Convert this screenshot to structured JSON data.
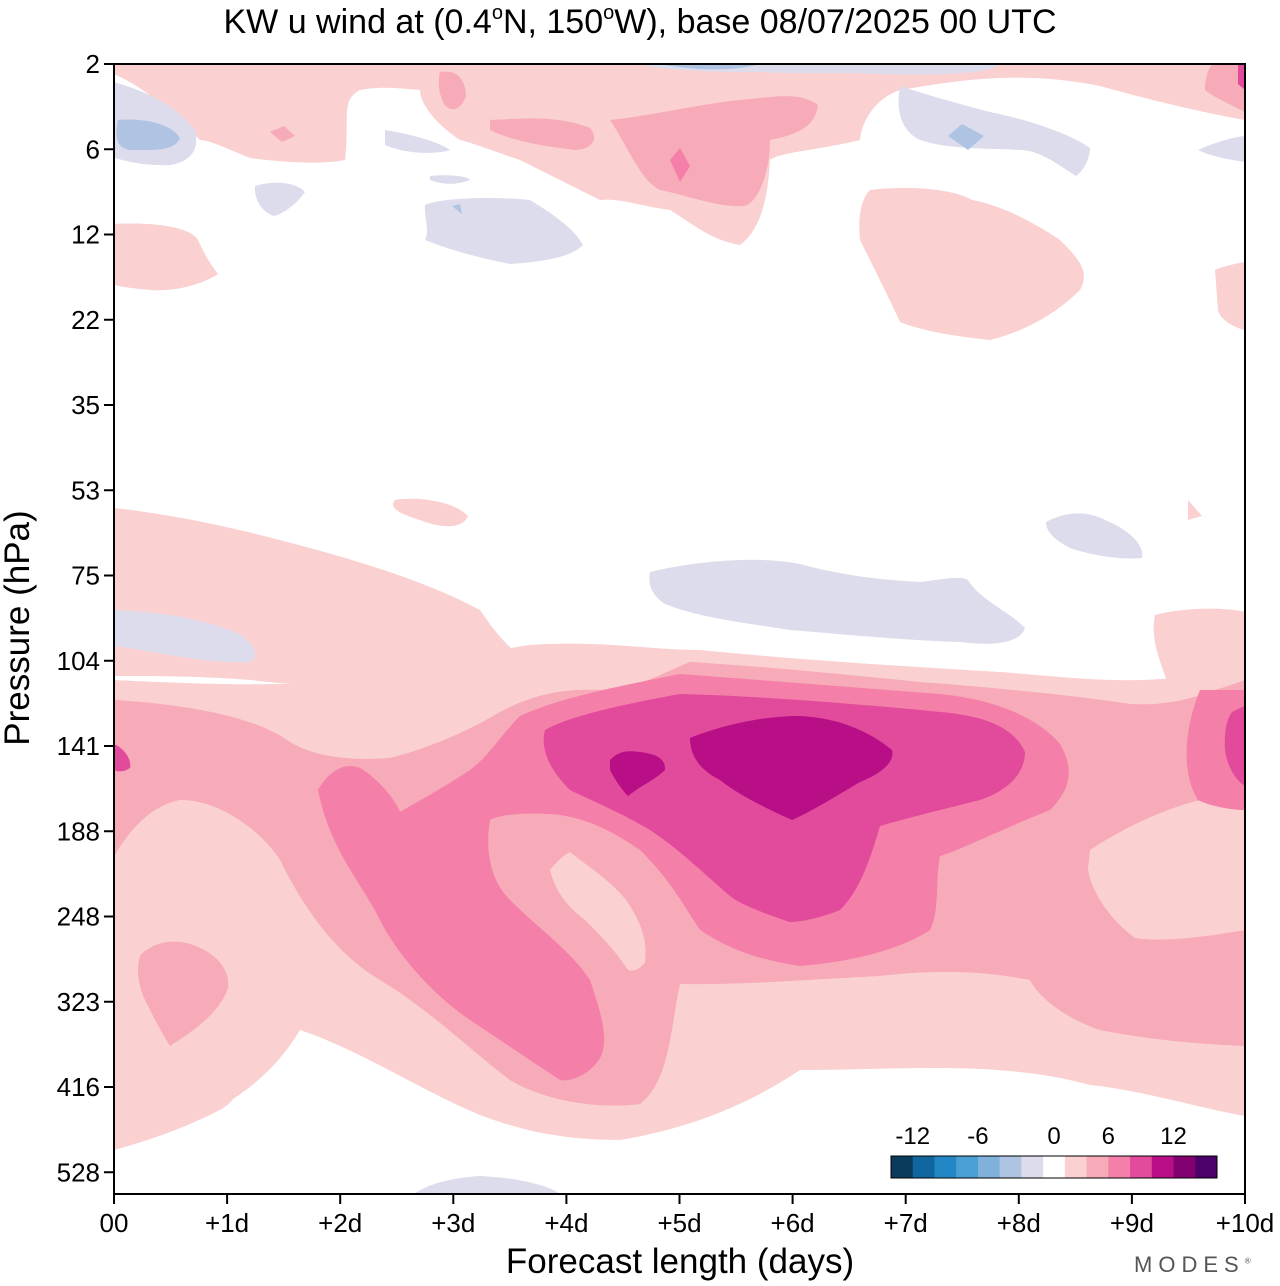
{
  "title": {
    "prefix": "KW u wind at (0.4",
    "deg1": "o",
    "mid": "N, 150",
    "deg2": "o",
    "suffix": "W),  base 08/07/2025  00 UTC"
  },
  "watermark": "MODES",
  "watermark_mark": "®",
  "chart_data": {
    "type": "heatmap",
    "xlabel": "Forecast length (days)",
    "ylabel": "Pressure (hPa)",
    "x_ticks": [
      "00",
      "+1d",
      "+2d",
      "+3d",
      "+4d",
      "+5d",
      "+6d",
      "+7d",
      "+8d",
      "+9d",
      "+10d"
    ],
    "x_range_days": [
      0,
      10
    ],
    "y_ticks": [
      "2",
      "6",
      "12",
      "22",
      "35",
      "53",
      "75",
      "104",
      "141",
      "188",
      "248",
      "323",
      "416",
      "528"
    ],
    "y_scale": "log-pressure (ticks evenly spaced, top = 2 hPa)",
    "colorbar": {
      "tick_labels": [
        "-12",
        "-6",
        "0",
        "6",
        "12"
      ],
      "bins": [
        -14,
        -12,
        -10,
        -8,
        -6,
        -4,
        -2,
        2,
        4,
        6,
        8,
        10,
        12,
        14
      ],
      "colors": [
        "#0b3b5c",
        "#1266a0",
        "#2387c6",
        "#4aa0d4",
        "#7fb1da",
        "#aec4e2",
        "#dcdcec",
        "#ffffff",
        "#fad0d0",
        "#f7aab8",
        "#f47fa8",
        "#e24a9c",
        "#b80e86",
        "#820070",
        "#4c006a"
      ]
    },
    "features": [
      {
        "type": "positive anomaly",
        "peak_day": 6.0,
        "peak_hPa": 150,
        "max_value_range": "10 to 12"
      },
      {
        "type": "positive anomaly",
        "peak_day": 4.5,
        "peak_hPa": 155,
        "max_value_range": "10 to 12"
      },
      {
        "type": "positive anomaly",
        "peak_day": 3.5,
        "peak_hPa": 300,
        "max_value_range": "6 to 8"
      },
      {
        "type": "negative anomaly",
        "peak_day": 6.5,
        "peak_hPa": 85,
        "max_value_range": "-4 to -2"
      },
      {
        "type": "positive anomaly",
        "peak_day": 2.0,
        "peak_hPa": 80,
        "max_value_range": "4 to 6"
      }
    ]
  },
  "colors": {
    "neg1": "#dcdcec",
    "neg2": "#aec4e2",
    "neg3": "#7fb1da",
    "pos1": "#fad0d0",
    "pos2": "#f7aab8",
    "pos3": "#f47fa8",
    "pos4": "#e24a9c",
    "pos5": "#b80e86"
  }
}
